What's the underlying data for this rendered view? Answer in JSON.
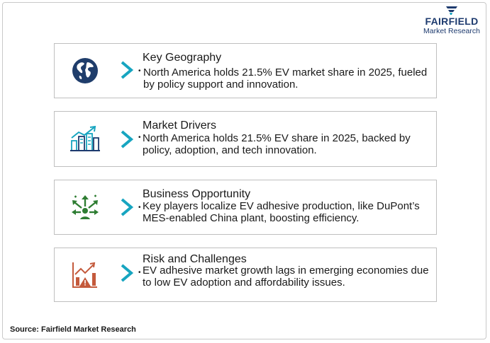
{
  "brand": {
    "name": "FAIRFIELD",
    "tagline": "Market Research"
  },
  "cards": [
    {
      "title": "Key Geography",
      "text": "North America holds 21.5% EV market share in 2025, fueled by policy support and innovation.",
      "icon": "globe-icon"
    },
    {
      "title": "Market Drivers",
      "text": "North America holds 21.5% EV share in 2025, backed by policy, adoption, and tech innovation.",
      "icon": "growth-city-icon"
    },
    {
      "title": "Business Opportunity",
      "text": "Key players localize EV adhesive production, like DuPont’s MES-enabled China plant, boosting efficiency.",
      "icon": "opportunity-arrows-icon"
    },
    {
      "title": "Risk and Challenges",
      "text": "EV adhesive market growth lags in emerging economies due to low EV adoption and affordability issues.",
      "icon": "risk-chart-icon"
    }
  ],
  "source": "Source: Fairfield Market Research",
  "colors": {
    "navy": "#1d3a6e",
    "teal": "#17a5c0",
    "green": "#2e7d32",
    "rust": "#c45a3c",
    "globe": "#1f3d6b"
  }
}
